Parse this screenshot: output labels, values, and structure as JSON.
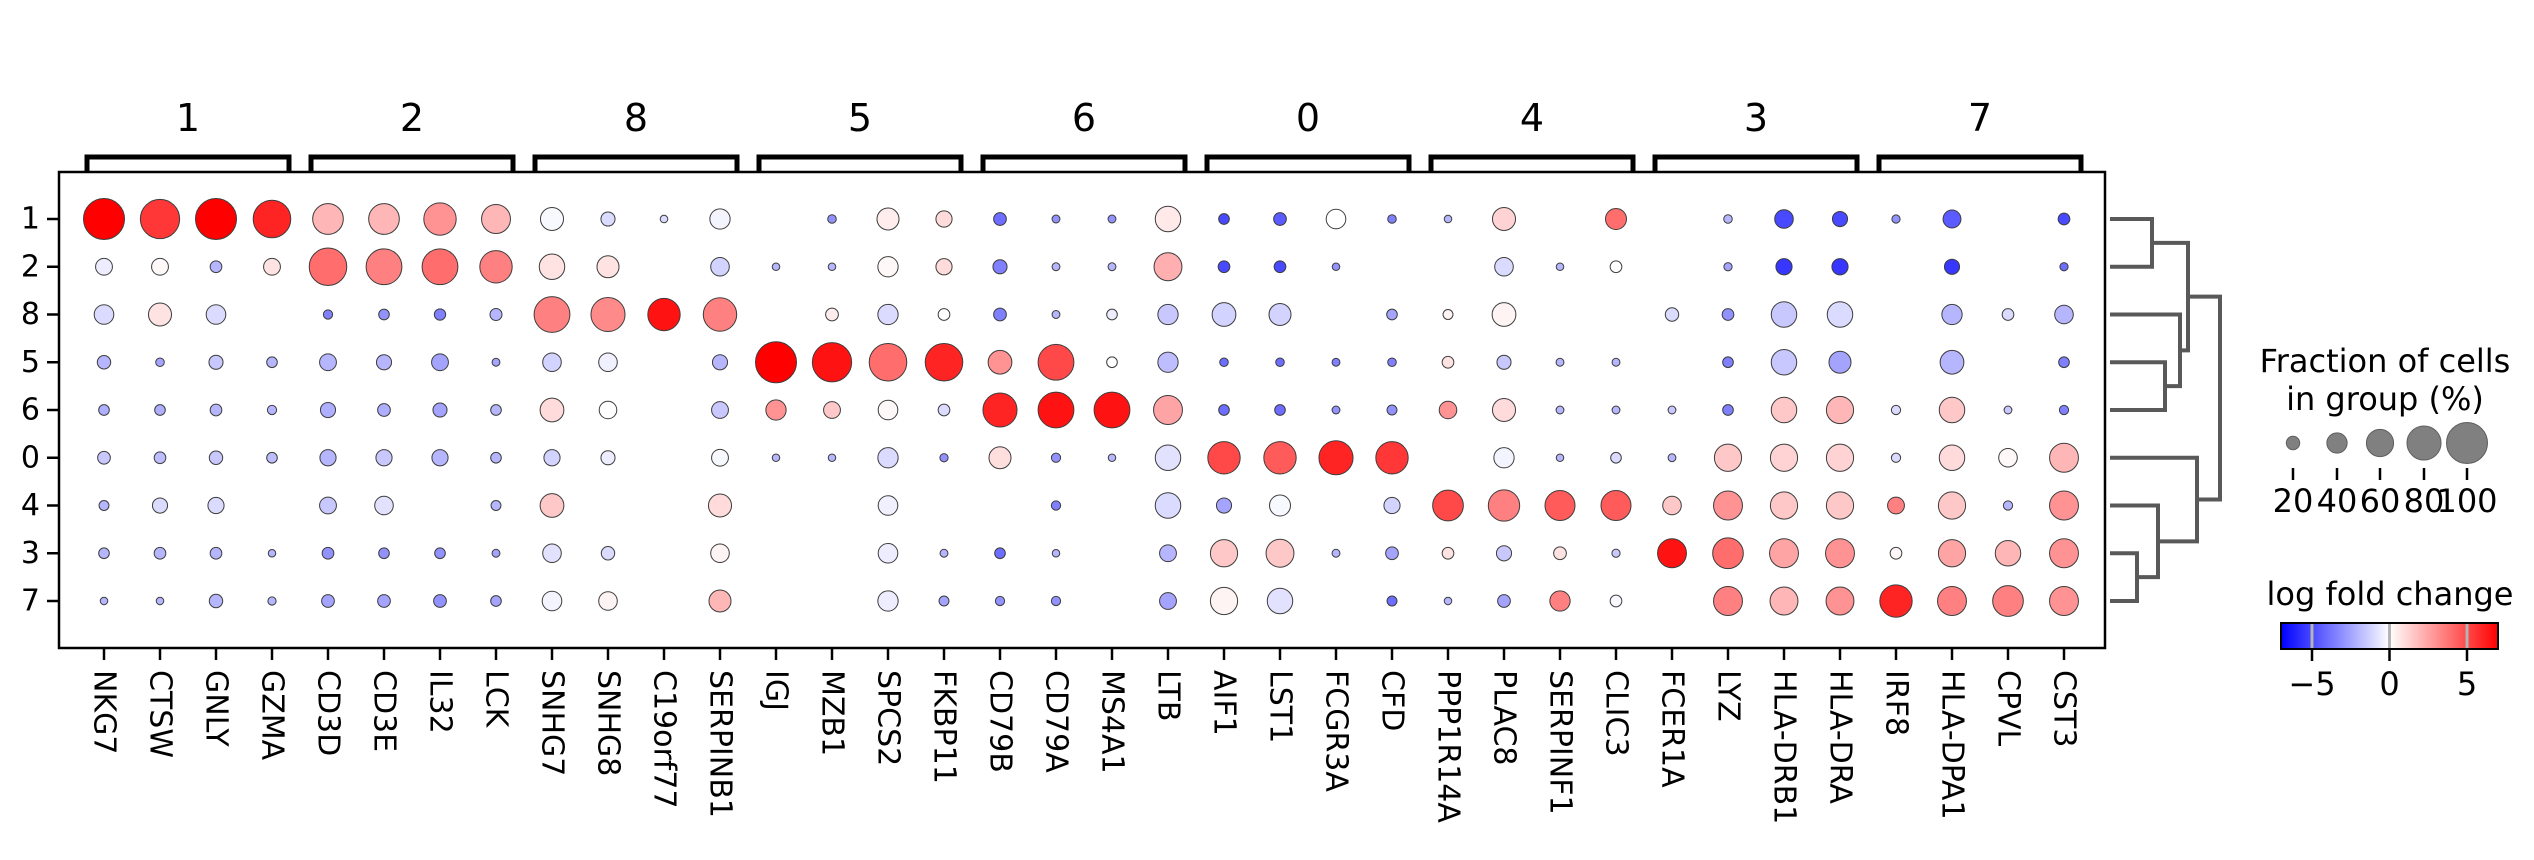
{
  "chart_data": {
    "type": "dotplot",
    "clusters": [
      "1",
      "2",
      "8",
      "5",
      "6",
      "0",
      "4",
      "3",
      "7"
    ],
    "genes": [
      "NKG7",
      "CTSW",
      "GNLY",
      "GZMA",
      "CD3D",
      "CD3E",
      "IL32",
      "LCK",
      "SNHG7",
      "SNHG8",
      "C19orf77",
      "SERPINB1",
      "IGJ",
      "MZB1",
      "SPCS2",
      "FKBP11",
      "CD79B",
      "CD79A",
      "MS4A1",
      "LTB",
      "AIF1",
      "LST1",
      "FCGR3A",
      "CFD",
      "PPP1R14A",
      "PLAC8",
      "SERPINF1",
      "CLIC3",
      "FCER1A",
      "LYZ",
      "HLA-DRB1",
      "HLA-DRA",
      "IRF8",
      "HLA-DPA1",
      "CPVL",
      "CST3"
    ],
    "gene_groups": [
      {
        "label": "1",
        "genes": [
          "NKG7",
          "CTSW",
          "GNLY",
          "GZMA"
        ]
      },
      {
        "label": "2",
        "genes": [
          "CD3D",
          "CD3E",
          "IL32",
          "LCK"
        ]
      },
      {
        "label": "8",
        "genes": [
          "SNHG7",
          "SNHG8",
          "C19orf77",
          "SERPINB1"
        ]
      },
      {
        "label": "5",
        "genes": [
          "IGJ",
          "MZB1",
          "SPCS2",
          "FKBP11"
        ]
      },
      {
        "label": "6",
        "genes": [
          "CD79B",
          "CD79A",
          "MS4A1",
          "LTB"
        ]
      },
      {
        "label": "0",
        "genes": [
          "AIF1",
          "LST1",
          "FCGR3A",
          "CFD"
        ]
      },
      {
        "label": "4",
        "genes": [
          "PPP1R14A",
          "PLAC8",
          "SERPINF1",
          "CLIC3"
        ]
      },
      {
        "label": "3",
        "genes": [
          "FCER1A",
          "LYZ",
          "HLA-DRB1",
          "HLA-DRA"
        ]
      },
      {
        "label": "7",
        "genes": [
          "IRF8",
          "HLA-DPA1",
          "CPVL",
          "CST3"
        ]
      }
    ],
    "fraction_pct": {
      "1": [
        100,
        95,
        100,
        90,
        70,
        70,
        75,
        65,
        48,
        22,
        3,
        40,
        0,
        6,
        45,
        28,
        18,
        4,
        4,
        55,
        12,
        18,
        38,
        6,
        3,
        48,
        0,
        42,
        0,
        6,
        35,
        25,
        5,
        33,
        0,
        15
      ],
      "2": [
        30,
        30,
        15,
        30,
        90,
        85,
        85,
        75,
        55,
        45,
        0,
        35,
        3,
        3,
        40,
        28,
        22,
        4,
        4,
        62,
        15,
        15,
        3,
        0,
        0,
        35,
        3,
        15,
        0,
        5,
        28,
        28,
        0,
        25,
        0,
        5
      ],
      "8": [
        38,
        48,
        38,
        0,
        8,
        12,
        14,
        16,
        85,
        80,
        75,
        78,
        0,
        18,
        40,
        15,
        18,
        4,
        12,
        40,
        50,
        45,
        0,
        12,
        10,
        50,
        0,
        0,
        20,
        15,
        55,
        55,
        0,
        40,
        15,
        35
      ],
      "5": [
        20,
        6,
        22,
        12,
        30,
        25,
        30,
        4,
        35,
        35,
        0,
        25,
        100,
        95,
        90,
        90,
        50,
        85,
        12,
        40,
        6,
        6,
        4,
        6,
        15,
        22,
        4,
        4,
        0,
        12,
        55,
        45,
        0,
        50,
        0,
        12
      ],
      "6": [
        12,
        12,
        15,
        8,
        25,
        18,
        22,
        12,
        50,
        32,
        0,
        30,
        40,
        30,
        38,
        15,
        80,
        85,
        85,
        65,
        12,
        12,
        4,
        10,
        32,
        48,
        4,
        4,
        4,
        12,
        55,
        60,
        8,
        55,
        4,
        8
      ],
      "0": [
        18,
        15,
        20,
        12,
        28,
        28,
        28,
        12,
        28,
        22,
        0,
        30,
        3,
        3,
        40,
        5,
        45,
        8,
        3,
        55,
        75,
        75,
        80,
        75,
        0,
        40,
        3,
        12,
        4,
        60,
        60,
        60,
        8,
        55,
        35,
        65
      ],
      "4": [
        10,
        25,
        28,
        0,
        30,
        35,
        0,
        10,
        50,
        0,
        0,
        48,
        0,
        0,
        38,
        0,
        0,
        8,
        0,
        55,
        25,
        42,
        0,
        28,
        70,
        72,
        68,
        68,
        35,
        65,
        60,
        60,
        30,
        60,
        8,
        65
      ],
      "3": [
        12,
        15,
        15,
        3,
        15,
        12,
        12,
        4,
        35,
        20,
        0,
        35,
        0,
        0,
        38,
        4,
        12,
        3,
        0,
        30,
        60,
        62,
        4,
        18,
        15,
        25,
        18,
        5,
        65,
        70,
        65,
        65,
        15,
        60,
        55,
        65
      ],
      "7": [
        3,
        3,
        20,
        5,
        18,
        18,
        18,
        12,
        38,
        35,
        0,
        45,
        0,
        0,
        40,
        10,
        8,
        8,
        0,
        30,
        60,
        55,
        0,
        10,
        3,
        18,
        40,
        15,
        0,
        65,
        62,
        62,
        75,
        65,
        70,
        65
      ]
    },
    "log_fold_change": {
      "1": [
        7,
        5.5,
        7,
        6,
        2,
        2,
        3,
        2,
        -0.2,
        -1,
        -1,
        -0.3,
        0,
        -3,
        0.5,
        1,
        -4,
        -3,
        -3,
        0.6,
        -5,
        -4.5,
        0,
        -3.5,
        -2,
        1.2,
        0,
        4,
        0,
        -2,
        -5,
        -5,
        -3,
        -4.5,
        0,
        -5
      ],
      "2": [
        -0.5,
        0.2,
        -2,
        0.8,
        4,
        3.5,
        4,
        3.5,
        0.8,
        0.8,
        0,
        -1.2,
        -2,
        -2,
        0.2,
        1,
        -3.5,
        -2,
        -2,
        2.2,
        -5,
        -5,
        -3,
        0,
        0,
        -1,
        -2,
        0,
        0,
        -2.5,
        -5.5,
        -5.5,
        0,
        -5.5,
        0,
        -4
      ],
      "8": [
        -1,
        0.8,
        -1,
        0,
        -3.5,
        -3,
        -3.5,
        -2,
        3.5,
        3.2,
        6.5,
        3.5,
        0,
        0.5,
        -1,
        0,
        -3.5,
        -2,
        -0.5,
        -1.5,
        -1.2,
        -1.2,
        0,
        -2.5,
        0.3,
        0.3,
        0,
        0,
        -1,
        -3,
        -1.5,
        -1,
        0,
        -2,
        -1,
        -2
      ],
      "5": [
        -2,
        -2.5,
        -1.5,
        -2,
        -2,
        -2,
        -2.5,
        -2.5,
        -1.2,
        -0.4,
        0,
        -2,
        7,
        6.5,
        4,
        6,
        3,
        5,
        0,
        -1.8,
        -4,
        -4,
        -3.5,
        -3.5,
        0.8,
        -1.5,
        -2,
        -2,
        0,
        -3.5,
        -1.5,
        -2.5,
        0,
        -2,
        0,
        -3.5
      ],
      "6": [
        -2.2,
        -2.2,
        -2,
        -2,
        -2.2,
        -2.2,
        -2.5,
        -2,
        1,
        0,
        0,
        -1.5,
        3,
        1.5,
        0.2,
        -1,
        6,
        6.5,
        6.5,
        2.5,
        -4,
        -4,
        -3,
        -3,
        3,
        1,
        -2,
        -2,
        -1.5,
        -3.5,
        1.5,
        2,
        -1,
        1.5,
        -1.5,
        -3.5
      ],
      "0": [
        -1.5,
        -1.8,
        -1.5,
        -1.8,
        -2,
        -1.5,
        -2,
        -2,
        -1.2,
        -0.5,
        0,
        -0.2,
        -2,
        -2,
        -1,
        -3,
        0.9,
        -3,
        -2,
        -0.8,
        5,
        4.5,
        6,
        5.5,
        0,
        -0.3,
        -2,
        -1,
        -2,
        1.5,
        1.2,
        1.2,
        -1,
        1,
        0.2,
        2
      ],
      "4": [
        -2,
        -1,
        -1,
        0,
        -1.5,
        -0.8,
        0,
        -2,
        1.5,
        0,
        0,
        1,
        0,
        0,
        -0.4,
        0,
        0,
        -3.5,
        0,
        -1,
        -2.5,
        -0.2,
        0,
        -1.2,
        5,
        3.5,
        4.5,
        4.5,
        1.5,
        3,
        1.5,
        1.5,
        3.5,
        1.5,
        -2,
        3
      ],
      "3": [
        -2,
        -2,
        -2,
        -2,
        -3,
        -3,
        -3,
        -2.5,
        -0.8,
        -1,
        0,
        0.3,
        0,
        0,
        -0.5,
        -2,
        -4,
        -2,
        0,
        -2,
        1.5,
        1.5,
        -2,
        -2.5,
        0.8,
        -1.5,
        0.8,
        -1.5,
        6.5,
        4,
        2.5,
        3,
        0.2,
        2.5,
        2,
        3
      ],
      "7": [
        -2,
        -2,
        -2,
        -2,
        -2.5,
        -2.5,
        -3,
        -2.5,
        -0.3,
        0.3,
        0,
        2,
        0,
        0,
        -0.5,
        -2.5,
        -3,
        -3,
        0,
        -2.5,
        0.3,
        -0.8,
        0,
        -4,
        -2,
        -2.5,
        3.5,
        -0.2,
        0,
        3.5,
        2,
        3,
        6,
        3.5,
        3.5,
        3
      ]
    },
    "size_legend": {
      "title_line1": "Fraction of cells",
      "title_line2": "in group (%)",
      "values": [
        20,
        40,
        60,
        80,
        100
      ],
      "dot_color": "#808080"
    },
    "colorbar": {
      "title": "log fold change",
      "tick_values": [
        -5,
        0,
        5
      ],
      "tick_labels": [
        "−5",
        "0",
        "5"
      ],
      "domain": [
        -7,
        7
      ],
      "cmap": [
        "#0000ff",
        "#ffffff",
        "#ff0000"
      ]
    },
    "dendrogram": {
      "leaf_order": [
        "1",
        "2",
        "8",
        "5",
        "6",
        "0",
        "4",
        "3",
        "7"
      ],
      "newick": "(((1,2),(8,(5,6))),(0,(4,(3,7))))"
    }
  }
}
